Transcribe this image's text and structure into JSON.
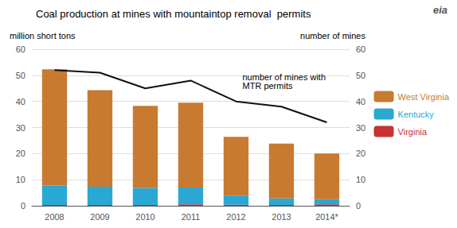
{
  "chart_data": {
    "type": "bar",
    "title": "Coal production at mines with mountaintop removal  permits",
    "ylabel": "million short tons",
    "y2label": "number of mines",
    "categories": [
      "2008",
      "2009",
      "2010",
      "2011",
      "2012",
      "2013",
      "2014*"
    ],
    "series": [
      {
        "name": "Virginia",
        "color": "#C83232",
        "values": [
          0.3,
          0.3,
          0.3,
          0.5,
          0.4,
          0.3,
          0.5
        ]
      },
      {
        "name": "Kentucky",
        "color": "#29A8D4",
        "values": [
          7.5,
          7.0,
          6.5,
          6.5,
          3.5,
          2.5,
          2.0
        ]
      },
      {
        "name": "West Virginia",
        "color": "#C87A30",
        "values": [
          44.5,
          37.0,
          31.5,
          32.5,
          22.5,
          21.0,
          17.5
        ]
      },
      {
        "type": "line",
        "axis": "y2",
        "color": "#111111",
        "values": [
          52,
          51,
          45,
          48,
          40,
          38,
          32
        ]
      }
    ],
    "stacked": true,
    "ylim": [
      0,
      60
    ],
    "yticks": [
      0,
      10,
      20,
      30,
      40,
      50,
      60
    ],
    "y2lim": [
      0,
      60
    ],
    "y2ticks": [
      0,
      10,
      20,
      30,
      40,
      50,
      60
    ],
    "grid": true,
    "legend": "right",
    "annotations": [
      "number of mines with\nMTR permits",
      "eia"
    ]
  }
}
